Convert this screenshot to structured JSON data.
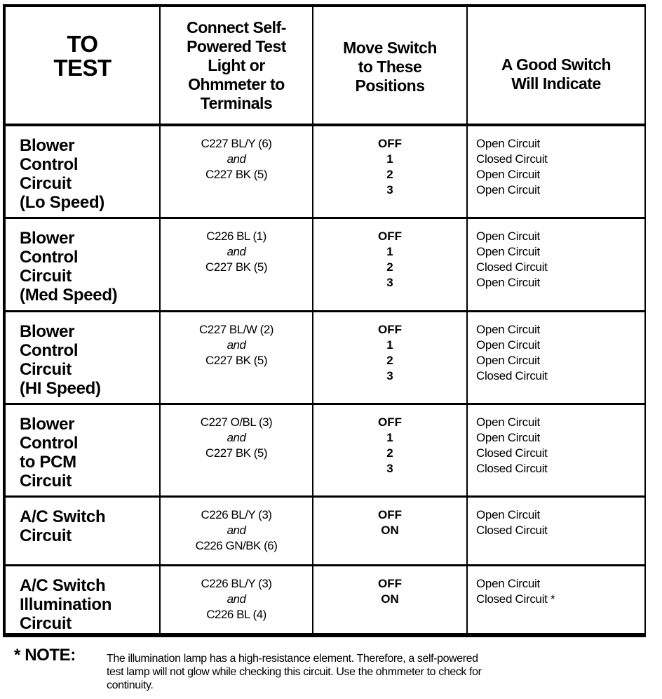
{
  "headers": [
    "TO TEST",
    "Connect Self-Powered Test Light or Ohmmeter to Terminals",
    "Move Switch to These Positions",
    "A Good Switch Will Indicate"
  ],
  "header_lines": [
    [
      "TO",
      "TEST"
    ],
    [
      "Connect Self-",
      "Powered Test",
      "Light or",
      "Ohmmeter to",
      "Terminals"
    ],
    [
      "Move Switch",
      "to These",
      "Positions"
    ],
    [
      "A Good Switch",
      "Will Indicate"
    ]
  ],
  "rows": [
    {
      "test": [
        "Blower",
        "Control",
        "Circuit",
        "(Lo Speed)"
      ],
      "terminal_a": "C227 BL/Y (6)",
      "and": "and",
      "terminal_b": "C227 BK (5)",
      "positions": [
        "OFF",
        "1",
        "2",
        "3"
      ],
      "indicate": [
        "Open Circuit",
        "Closed Circuit",
        "Open Circuit",
        "Open Circuit"
      ]
    },
    {
      "test": [
        "Blower",
        "Control",
        "Circuit",
        "(Med Speed)"
      ],
      "terminal_a": "C226 BL (1)",
      "and": "and",
      "terminal_b": "C227 BK (5)",
      "positions": [
        "OFF",
        "1",
        "2",
        "3"
      ],
      "indicate": [
        "Open Circuit",
        "Open Circuit",
        "Closed Circuit",
        "Open Circuit"
      ]
    },
    {
      "test": [
        "Blower",
        "Control",
        "Circuit",
        "(HI Speed)"
      ],
      "terminal_a": "C227 BL/W (2)",
      "and": "and",
      "terminal_b": "C227 BK (5)",
      "positions": [
        "OFF",
        "1",
        "2",
        "3"
      ],
      "indicate": [
        "Open Circuit",
        "Open Circuit",
        "Open Circuit",
        "Closed Circuit"
      ]
    },
    {
      "test": [
        "Blower",
        "Control",
        "to PCM",
        "Circuit"
      ],
      "terminal_a": "C227 O/BL (3)",
      "and": "and",
      "terminal_b": "C227 BK (5)",
      "positions": [
        "OFF",
        "1",
        "2",
        "3"
      ],
      "indicate": [
        "Open Circuit",
        "Open Circuit",
        "Closed Circuit",
        "Closed Circuit"
      ]
    },
    {
      "test": [
        "A/C Switch",
        "Circuit"
      ],
      "terminal_a": "C226 BL/Y (3)",
      "and": "and",
      "terminal_b": "C226 GN/BK (6)",
      "positions": [
        "OFF",
        "ON"
      ],
      "indicate": [
        "Open Circuit",
        "Closed Circuit"
      ]
    },
    {
      "test": [
        "A/C Switch",
        "Illumination",
        "Circuit"
      ],
      "terminal_a": "C226 BL/Y (3)",
      "and": "and",
      "terminal_b": "C226 BL (4)",
      "positions": [
        "OFF",
        "ON"
      ],
      "indicate": [
        "Open Circuit",
        "Closed Circuit *"
      ]
    }
  ],
  "note": {
    "label": "* NOTE:",
    "lines": [
      "The illumination lamp has a high-resistance element. Therefore, a self-powered",
      "test lamp will not glow while checking this circuit. Use the ohmmeter to check  for",
      "continuity."
    ]
  }
}
